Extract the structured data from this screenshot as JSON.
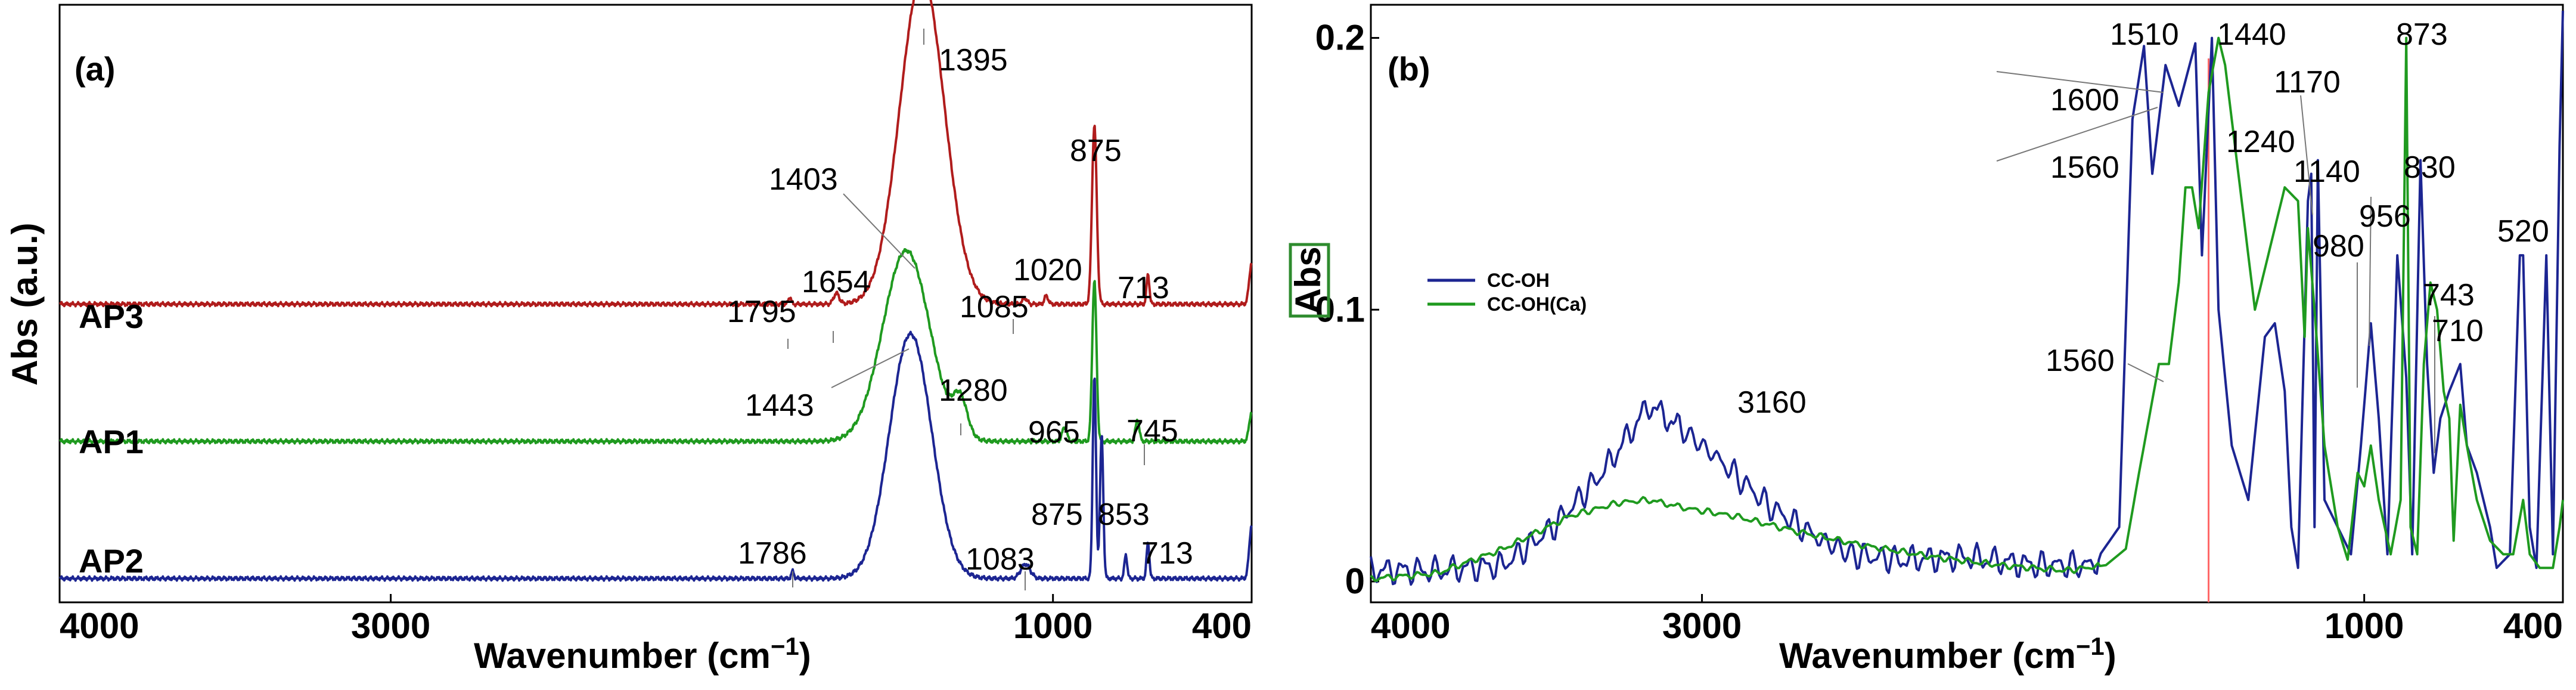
{
  "colors": {
    "AP3": "#b01c1c",
    "AP1": "#1f9a1f",
    "AP2": "#1c2592",
    "CC-OH": "#1c2592",
    "CC-OH(Ca)": "#1f9a1f",
    "refline": "#ff6666",
    "ylabel_box": "#2e8b2e"
  },
  "chart_data": [
    {
      "type": "line",
      "panel": "(a)",
      "xlabel": "Wavenumber (cm",
      "xlabel_sup": "−1",
      "xlabel_close": ")",
      "ylabel": "Abs (a.u.)",
      "xlim": [
        4000,
        400
      ],
      "xticks": [
        "4000",
        "3000",
        "1000",
        "400"
      ],
      "xtick_values": [
        4000,
        3000,
        1000,
        400
      ],
      "series": [
        {
          "name": "AP3",
          "baseline": 2.35,
          "height": 2.75,
          "width": 95,
          "center": 1395,
          "peaks": [
            [
              1795,
              0.06,
              6
            ],
            [
              1654,
              0.09,
              12
            ],
            [
              1085,
              0.05,
              10
            ],
            [
              1020,
              0.07,
              8
            ],
            [
              875,
              1.5,
              10
            ],
            [
              713,
              0.25,
              6
            ],
            [
              400,
              0.35,
              10
            ]
          ]
        },
        {
          "name": "AP1",
          "baseline": 1.2,
          "height": 1.6,
          "width": 100,
          "center": 1443,
          "peaks": [
            [
              1280,
              0.3,
              30
            ],
            [
              965,
              0.12,
              10
            ],
            [
              875,
              1.35,
              9
            ],
            [
              745,
              0.18,
              8
            ],
            [
              400,
              0.25,
              10
            ]
          ]
        },
        {
          "name": "AP2",
          "baseline": 0.05,
          "height": 2.05,
          "width": 90,
          "center": 1430,
          "peaks": [
            [
              1786,
              0.06,
              6
            ],
            [
              1083,
              0.12,
              20
            ],
            [
              875,
              1.7,
              7
            ],
            [
              853,
              1.2,
              7
            ],
            [
              713,
              0.3,
              6
            ],
            [
              780,
              0.2,
              6
            ],
            [
              400,
              0.45,
              10
            ]
          ]
        }
      ],
      "annotations": [
        "1395",
        "1403",
        "875",
        "1795",
        "1654",
        "1020",
        "1085",
        "713",
        "1443",
        "1280",
        "965",
        "745",
        "1786",
        "1083",
        "875",
        "853",
        "713"
      ]
    },
    {
      "type": "line",
      "panel": "(b)",
      "xlabel": "Wavenumber (cm",
      "xlabel_sup": "−1",
      "xlabel_close": ")",
      "ylabel": "Abs",
      "xlim": [
        4000,
        400
      ],
      "ylim": [
        0,
        0.21
      ],
      "xticks": [
        "4000",
        "3000",
        "1000",
        "400"
      ],
      "xtick_values": [
        4000,
        3000,
        1000,
        400
      ],
      "yticks": [
        "0",
        "0.1",
        "0.2"
      ],
      "ytick_values": [
        0,
        0.1,
        0.2
      ],
      "reference_line_x": 1470,
      "legend": [
        "CC-OH",
        "CC-OH(Ca)"
      ],
      "series": [
        {
          "name": "CC-OH",
          "points": [
            [
              4000,
              0.004
            ],
            [
              3800,
              0.004
            ],
            [
              3600,
              0.006
            ],
            [
              3450,
              0.02
            ],
            [
              3300,
              0.04
            ],
            [
              3160,
              0.065
            ],
            [
              3050,
              0.055
            ],
            [
              2950,
              0.045
            ],
            [
              2800,
              0.028
            ],
            [
              2650,
              0.016
            ],
            [
              2550,
              0.01
            ],
            [
              2400,
              0.008
            ],
            [
              2200,
              0.009
            ],
            [
              2000,
              0.006
            ],
            [
              1820,
              0.006
            ],
            [
              1740,
              0.02
            ],
            [
              1700,
              0.17
            ],
            [
              1665,
              0.197
            ],
            [
              1640,
              0.15
            ],
            [
              1600,
              0.19
            ],
            [
              1560,
              0.175
            ],
            [
              1510,
              0.198
            ],
            [
              1490,
              0.12
            ],
            [
              1460,
              0.2
            ],
            [
              1440,
              0.1
            ],
            [
              1400,
              0.05
            ],
            [
              1350,
              0.03
            ],
            [
              1300,
              0.09
            ],
            [
              1270,
              0.095
            ],
            [
              1240,
              0.07
            ],
            [
              1220,
              0.02
            ],
            [
              1200,
              0.005
            ],
            [
              1170,
              0.14
            ],
            [
              1160,
              0.15
            ],
            [
              1150,
              0.02
            ],
            [
              1140,
              0.155
            ],
            [
              1120,
              0.03
            ],
            [
              1080,
              0.02
            ],
            [
              1040,
              0.01
            ],
            [
              1010,
              0.05
            ],
            [
              980,
              0.095
            ],
            [
              956,
              0.06
            ],
            [
              930,
              0.01
            ],
            [
              900,
              0.12
            ],
            [
              873,
              0.075
            ],
            [
              855,
              0.01
            ],
            [
              830,
              0.155
            ],
            [
              810,
              0.08
            ],
            [
              790,
              0.04
            ],
            [
              770,
              0.06
            ],
            [
              743,
              0.07
            ],
            [
              710,
              0.08
            ],
            [
              690,
              0.05
            ],
            [
              660,
              0.04
            ],
            [
              620,
              0.02
            ],
            [
              600,
              0.005
            ],
            [
              560,
              0.01
            ],
            [
              530,
              0.12
            ],
            [
              520,
              0.12
            ],
            [
              500,
              0.02
            ],
            [
              480,
              0.005
            ],
            [
              450,
              0.12
            ],
            [
              430,
              0.01
            ],
            [
              410,
              0.16
            ],
            [
              400,
              0.21
            ]
          ]
        },
        {
          "name": "CC-OH(Ca)",
          "points": [
            [
              4000,
              0.001
            ],
            [
              3800,
              0.003
            ],
            [
              3600,
              0.012
            ],
            [
              3400,
              0.024
            ],
            [
              3250,
              0.029
            ],
            [
              3160,
              0.03
            ],
            [
              3050,
              0.027
            ],
            [
              2900,
              0.024
            ],
            [
              2700,
              0.018
            ],
            [
              2500,
              0.013
            ],
            [
              2300,
              0.009
            ],
            [
              2100,
              0.006
            ],
            [
              1900,
              0.004
            ],
            [
              1780,
              0.006
            ],
            [
              1720,
              0.012
            ],
            [
              1680,
              0.04
            ],
            [
              1620,
              0.08
            ],
            [
              1590,
              0.08
            ],
            [
              1560,
              0.11
            ],
            [
              1540,
              0.145
            ],
            [
              1520,
              0.145
            ],
            [
              1500,
              0.13
            ],
            [
              1470,
              0.18
            ],
            [
              1440,
              0.2
            ],
            [
              1420,
              0.19
            ],
            [
              1400,
              0.17
            ],
            [
              1370,
              0.14
            ],
            [
              1330,
              0.1
            ],
            [
              1290,
              0.12
            ],
            [
              1240,
              0.145
            ],
            [
              1200,
              0.14
            ],
            [
              1180,
              0.09
            ],
            [
              1170,
              0.13
            ],
            [
              1150,
              0.1
            ],
            [
              1120,
              0.05
            ],
            [
              1080,
              0.02
            ],
            [
              1050,
              0.008
            ],
            [
              1020,
              0.04
            ],
            [
              1000,
              0.035
            ],
            [
              980,
              0.05
            ],
            [
              956,
              0.03
            ],
            [
              920,
              0.01
            ],
            [
              890,
              0.03
            ],
            [
              873,
              0.2
            ],
            [
              860,
              0.02
            ],
            [
              840,
              0.01
            ],
            [
              820,
              0.08
            ],
            [
              800,
              0.11
            ],
            [
              780,
              0.1
            ],
            [
              760,
              0.07
            ],
            [
              743,
              0.06
            ],
            [
              730,
              0.015
            ],
            [
              710,
              0.065
            ],
            [
              690,
              0.05
            ],
            [
              660,
              0.03
            ],
            [
              620,
              0.015
            ],
            [
              580,
              0.01
            ],
            [
              550,
              0.01
            ],
            [
              520,
              0.03
            ],
            [
              500,
              0.01
            ],
            [
              470,
              0.005
            ],
            [
              430,
              0.005
            ],
            [
              410,
              0.02
            ],
            [
              400,
              0.03
            ]
          ]
        }
      ],
      "annotations": [
        "3160",
        "1510",
        "1440",
        "873",
        "1600",
        "1560",
        "1170",
        "1240",
        "1140",
        "830",
        "956",
        "980",
        "520",
        "743",
        "710",
        "1560"
      ]
    }
  ]
}
